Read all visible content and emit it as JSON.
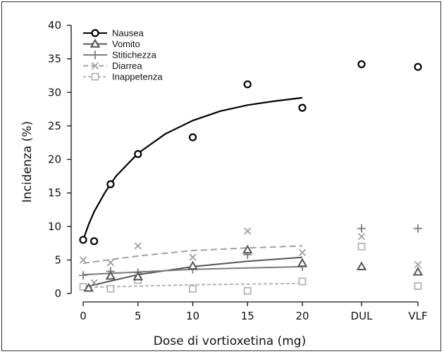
{
  "chart_data": {
    "type": "scatter",
    "xlabel": "Dose di vortioxetina (mg)",
    "ylabel": "Incidenza (%)",
    "ylim": [
      0,
      40
    ],
    "y_ticks": [
      0,
      5,
      10,
      15,
      20,
      25,
      30,
      35,
      40
    ],
    "x_ticks": [
      {
        "label": "0",
        "x": 0
      },
      {
        "label": "5",
        "x": 5
      },
      {
        "label": "10",
        "x": 10
      },
      {
        "label": "15",
        "x": 15
      },
      {
        "label": "20",
        "x": 20
      },
      {
        "label": "DUL",
        "x": "DUL"
      },
      {
        "label": "VLF",
        "x": "VLF"
      }
    ],
    "legend_position": "top-left",
    "series": [
      {
        "name": "Nausea",
        "marker": "circle",
        "color": "#000000",
        "line_style": "solid",
        "points": [
          {
            "x": 0,
            "y": 8.0
          },
          {
            "x": 1,
            "y": 7.8
          },
          {
            "x": 2.5,
            "y": 16.3
          },
          {
            "x": 5,
            "y": 20.8
          },
          {
            "x": 10,
            "y": 23.3
          },
          {
            "x": 15,
            "y": 31.2
          },
          {
            "x": 20,
            "y": 27.7
          },
          {
            "x": "DUL",
            "y": 34.2
          },
          {
            "x": "VLF",
            "y": 33.8
          }
        ],
        "fit": [
          {
            "x": 0,
            "y": 8.0
          },
          {
            "x": 0.5,
            "y": 10.3
          },
          {
            "x": 1,
            "y": 12.2
          },
          {
            "x": 2,
            "y": 15.1
          },
          {
            "x": 3,
            "y": 17.5
          },
          {
            "x": 5,
            "y": 20.9
          },
          {
            "x": 7.5,
            "y": 23.8
          },
          {
            "x": 10,
            "y": 25.8
          },
          {
            "x": 12.5,
            "y": 27.2
          },
          {
            "x": 15,
            "y": 28.1
          },
          {
            "x": 17.5,
            "y": 28.7
          },
          {
            "x": 20,
            "y": 29.2
          }
        ]
      },
      {
        "name": "Vomito",
        "marker": "triangle",
        "color": "#555555",
        "line_style": "solid",
        "points": [
          {
            "x": 0.5,
            "y": 0.8
          },
          {
            "x": 2.5,
            "y": 2.6
          },
          {
            "x": 5,
            "y": 2.5
          },
          {
            "x": 10,
            "y": 4.1
          },
          {
            "x": 15,
            "y": 6.5
          },
          {
            "x": 20,
            "y": 4.5
          },
          {
            "x": "DUL",
            "y": 4.0
          },
          {
            "x": "VLF",
            "y": 3.2
          }
        ],
        "fit": [
          {
            "x": 0,
            "y": 0.9
          },
          {
            "x": 5,
            "y": 2.8
          },
          {
            "x": 10,
            "y": 4.0
          },
          {
            "x": 15,
            "y": 4.8
          },
          {
            "x": 20,
            "y": 5.4
          }
        ]
      },
      {
        "name": "Stitichezza",
        "marker": "plus",
        "color": "#7a7a7a",
        "line_style": "solid",
        "points": [
          {
            "x": 0,
            "y": 2.7
          },
          {
            "x": 2.5,
            "y": 3.3
          },
          {
            "x": 5,
            "y": 3.1
          },
          {
            "x": 10,
            "y": 3.6
          },
          {
            "x": 15,
            "y": 5.8
          },
          {
            "x": 20,
            "y": 4.0
          },
          {
            "x": "DUL",
            "y": 9.7
          },
          {
            "x": "VLF",
            "y": 9.7
          }
        ],
        "fit": [
          {
            "x": 0,
            "y": 2.8
          },
          {
            "x": 5,
            "y": 3.2
          },
          {
            "x": 10,
            "y": 3.6
          },
          {
            "x": 15,
            "y": 3.8
          },
          {
            "x": 20,
            "y": 4.0
          }
        ]
      },
      {
        "name": "Diarrea",
        "marker": "x",
        "color": "#a0a0a0",
        "line_style": "dashed",
        "points": [
          {
            "x": 0,
            "y": 5.0
          },
          {
            "x": 1,
            "y": 1.6
          },
          {
            "x": 2.5,
            "y": 4.6
          },
          {
            "x": 5,
            "y": 7.1
          },
          {
            "x": 10,
            "y": 5.4
          },
          {
            "x": 15,
            "y": 9.3
          },
          {
            "x": 20,
            "y": 6.1
          },
          {
            "x": "DUL",
            "y": 8.5
          },
          {
            "x": "VLF",
            "y": 4.3
          }
        ],
        "fit": [
          {
            "x": 0,
            "y": 4.5
          },
          {
            "x": 5,
            "y": 5.6
          },
          {
            "x": 10,
            "y": 6.4
          },
          {
            "x": 15,
            "y": 6.8
          },
          {
            "x": 20,
            "y": 7.1
          }
        ]
      },
      {
        "name": "Inappetenza",
        "marker": "square",
        "color": "#b4b4b4",
        "line_style": "dotted",
        "points": [
          {
            "x": 0,
            "y": 1.0
          },
          {
            "x": 2.5,
            "y": 0.7
          },
          {
            "x": 5,
            "y": 2.0
          },
          {
            "x": 10,
            "y": 0.7
          },
          {
            "x": 15,
            "y": 0.4
          },
          {
            "x": 20,
            "y": 1.8
          },
          {
            "x": "DUL",
            "y": 7.0
          },
          {
            "x": "VLF",
            "y": 1.1
          }
        ],
        "fit": [
          {
            "x": 0,
            "y": 0.9
          },
          {
            "x": 5,
            "y": 1.1
          },
          {
            "x": 10,
            "y": 1.3
          },
          {
            "x": 15,
            "y": 1.4
          },
          {
            "x": 20,
            "y": 1.5
          }
        ]
      }
    ]
  }
}
